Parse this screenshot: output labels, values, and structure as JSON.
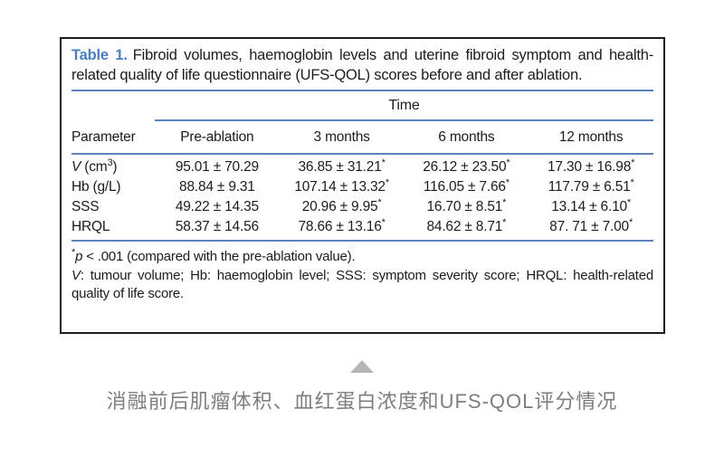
{
  "colors": {
    "accent_blue": "#4a7ebc",
    "rule_blue": "#5b82bd",
    "text_black": "#1c1c1c",
    "border_black": "#1c1c1c",
    "caption_gray": "#7e7e7e",
    "triangle_gray": "#b5b5b5"
  },
  "table": {
    "label": "Table 1.",
    "title": "Fibroid volumes, haemoglobin levels and uterine fibroid symptom and health-related quality of life questionnaire (UFS-QOL) scores before and after ablation.",
    "time_header": "Time",
    "columns": [
      "Parameter",
      "Pre-ablation",
      "3 months",
      "6 months",
      "12 months"
    ],
    "rows": [
      {
        "param": {
          "name": "V",
          "unit": " (cm",
          "sup": "3",
          "close": ")"
        },
        "values": [
          {
            "v": "95.01 ± 70.29",
            "star": ""
          },
          {
            "v": "36.85 ± 31.21",
            "star": "*"
          },
          {
            "v": "26.12 ± 23.50",
            "star": "*"
          },
          {
            "v": "17.30 ± 16.98",
            "star": "*"
          }
        ]
      },
      {
        "param": {
          "name": "Hb",
          "unit": " (g/L)",
          "sup": "",
          "close": ""
        },
        "values": [
          {
            "v": "88.84 ± 9.31",
            "star": ""
          },
          {
            "v": "107.14 ± 13.32",
            "star": "*"
          },
          {
            "v": "116.05 ± 7.66",
            "star": "*"
          },
          {
            "v": "117.79 ± 6.51",
            "star": "*"
          }
        ]
      },
      {
        "param": {
          "name": "SSS",
          "unit": "",
          "sup": "",
          "close": ""
        },
        "values": [
          {
            "v": "49.22 ± 14.35",
            "star": ""
          },
          {
            "v": "20.96 ± 9.95",
            "star": "*"
          },
          {
            "v": "16.70 ± 8.51",
            "star": "*"
          },
          {
            "v": "13.14 ± 6.10",
            "star": "*"
          }
        ]
      },
      {
        "param": {
          "name": "HRQL",
          "unit": "",
          "sup": "",
          "close": ""
        },
        "values": [
          {
            "v": "58.37 ± 14.56",
            "star": ""
          },
          {
            "v": "78.66 ± 13.16",
            "star": "*"
          },
          {
            "v": "84.62 ± 8.71",
            "star": "*"
          },
          {
            "v": "87. 71 ± 7.00",
            "star": "*"
          }
        ]
      }
    ],
    "footnote_sig": {
      "star": "*",
      "p": "p",
      "rest": " < .001 (compared with the pre-ablation value)."
    },
    "footnote_abbr": {
      "v": "V",
      "rest": ": tumour volume; Hb: haemoglobin level; SSS: symptom severity score; HRQL: health-related quality of life score."
    }
  },
  "caption": {
    "text": "消融前后肌瘤体积、血红蛋白浓度和UFS-QOL评分情况"
  }
}
